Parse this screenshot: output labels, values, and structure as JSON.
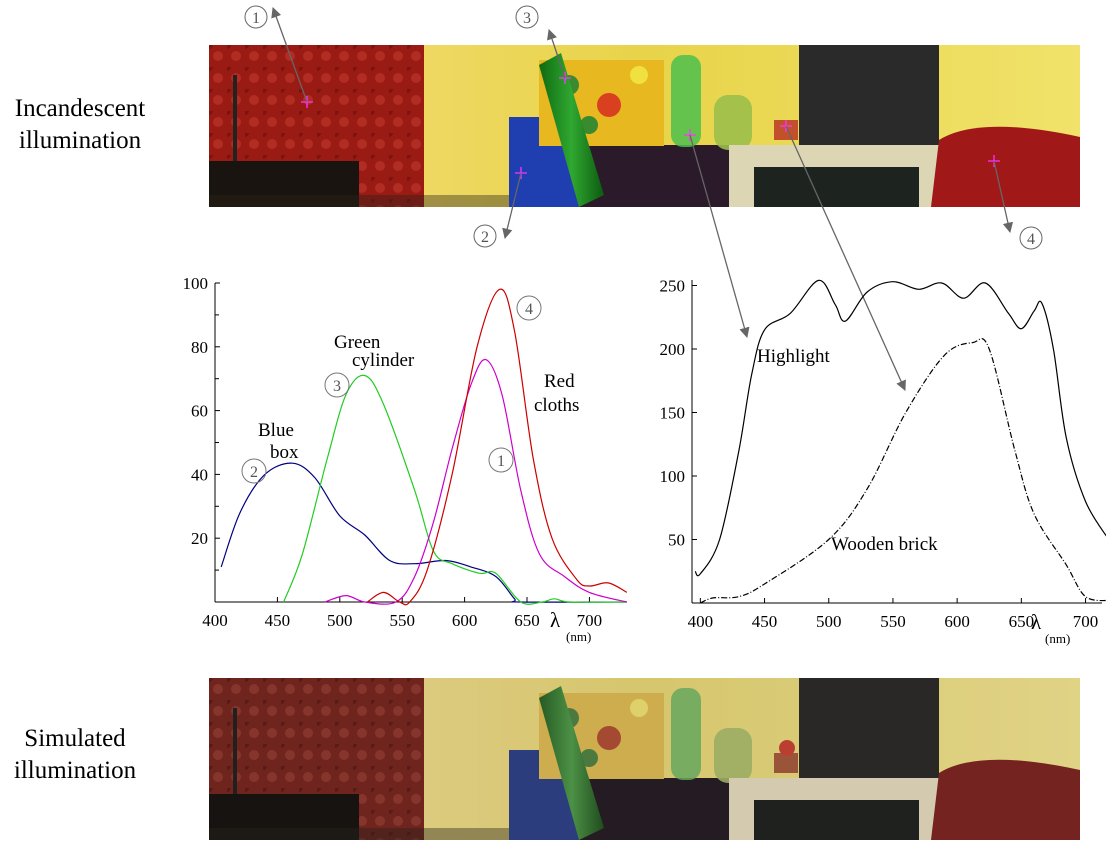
{
  "row_labels": {
    "top": [
      "Incandescent",
      "illumination"
    ],
    "bottom": [
      "Simulated",
      "illumination"
    ]
  },
  "markers": [
    "1",
    "2",
    "3",
    "4"
  ],
  "colors": {
    "marker": "#ff33ff",
    "blue_box": "#000080",
    "green_cylinder": "#22cc22",
    "red_cloths_1": "#cc00cc",
    "red_cloths_4": "#cc0000",
    "arrow": "#666666"
  },
  "chart_data": [
    {
      "type": "line",
      "xlabel": "λ",
      "xunit": "(nm)",
      "ylabel": "",
      "xlim": [
        388,
        732
      ],
      "ylim": [
        0,
        100
      ],
      "xticks": [
        400,
        450,
        500,
        550,
        600,
        650,
        700
      ],
      "yticks": [
        20,
        40,
        60,
        80,
        100
      ],
      "annotations": {
        "blue": [
          "Blue",
          "box"
        ],
        "green": [
          "Green",
          "cylinder"
        ],
        "red": [
          "Red",
          "cloths"
        ]
      },
      "series": [
        {
          "name": "2",
          "label": "Blue box",
          "color": "#000080",
          "points": [
            [
              405,
              11
            ],
            [
              420,
              28
            ],
            [
              440,
              40
            ],
            [
              462,
              43.5
            ],
            [
              480,
              39
            ],
            [
              500,
              27
            ],
            [
              520,
              21
            ],
            [
              540,
              13
            ],
            [
              560,
              12
            ],
            [
              585,
              13
            ],
            [
              605,
              11
            ],
            [
              625,
              8
            ],
            [
              640,
              1
            ],
            [
              645,
              0
            ],
            [
              730,
              0
            ]
          ]
        },
        {
          "name": "3",
          "label": "Green cylinder",
          "color": "#22cc22",
          "points": [
            [
              455,
              0
            ],
            [
              470,
              15
            ],
            [
              490,
              45
            ],
            [
              505,
              65
            ],
            [
              520,
              71
            ],
            [
              535,
              62
            ],
            [
              560,
              35
            ],
            [
              575,
              16
            ],
            [
              590,
              12
            ],
            [
              612,
              9
            ],
            [
              625,
              9
            ],
            [
              645,
              0
            ],
            [
              662,
              0
            ],
            [
              672,
              1
            ],
            [
              685,
              0
            ],
            [
              730,
              0
            ]
          ]
        },
        {
          "name": "1",
          "label": "Red cloths",
          "color": "#cc00cc",
          "points": [
            [
              488,
              0
            ],
            [
              505,
              2
            ],
            [
              520,
              0
            ],
            [
              545,
              0
            ],
            [
              560,
              8
            ],
            [
              575,
              25
            ],
            [
              590,
              48
            ],
            [
              605,
              68
            ],
            [
              617,
              76
            ],
            [
              630,
              65
            ],
            [
              645,
              35
            ],
            [
              660,
              15
            ],
            [
              680,
              8
            ],
            [
              700,
              3
            ],
            [
              730,
              0
            ]
          ]
        },
        {
          "name": "4",
          "label": "Red cloths",
          "color": "#cc0000",
          "points": [
            [
              522,
              0
            ],
            [
              535,
              3
            ],
            [
              548,
              0
            ],
            [
              556,
              0
            ],
            [
              570,
              10
            ],
            [
              590,
              40
            ],
            [
              610,
              80
            ],
            [
              628,
              98
            ],
            [
              640,
              85
            ],
            [
              655,
              45
            ],
            [
              670,
              20
            ],
            [
              690,
              7
            ],
            [
              700,
              5
            ],
            [
              715,
              6
            ],
            [
              730,
              3
            ]
          ]
        }
      ]
    },
    {
      "type": "line",
      "xlabel": "λ",
      "xunit": "(nm)",
      "ylabel": "",
      "xlim": [
        393,
        722
      ],
      "ylim": [
        0,
        262
      ],
      "xticks": [
        400,
        450,
        500,
        550,
        600,
        650,
        700
      ],
      "yticks": [
        50,
        100,
        150,
        200,
        250
      ],
      "series": [
        {
          "name": "Highlight",
          "style": "solid",
          "color": "#000000",
          "points": [
            [
              396,
              25
            ],
            [
              400,
              23
            ],
            [
              415,
              50
            ],
            [
              430,
              120
            ],
            [
              440,
              180
            ],
            [
              450,
              215
            ],
            [
              470,
              228
            ],
            [
              492,
              254
            ],
            [
              505,
              235
            ],
            [
              513,
              222
            ],
            [
              530,
              245
            ],
            [
              550,
              253
            ],
            [
              570,
              247
            ],
            [
              588,
              252
            ],
            [
              605,
              240
            ],
            [
              622,
              252
            ],
            [
              640,
              228
            ],
            [
              650,
              216
            ],
            [
              660,
              230
            ],
            [
              666,
              236
            ],
            [
              675,
              200
            ],
            [
              685,
              130
            ],
            [
              700,
              80
            ],
            [
              718,
              50
            ]
          ]
        },
        {
          "name": "Wooden brick",
          "style": "dashdot",
          "color": "#000000",
          "points": [
            [
              400,
              0
            ],
            [
              410,
              4
            ],
            [
              430,
              5
            ],
            [
              450,
              15
            ],
            [
              500,
              50
            ],
            [
              530,
              90
            ],
            [
              560,
              150
            ],
            [
              590,
              195
            ],
            [
              612,
              205
            ],
            [
              625,
              200
            ],
            [
              645,
              120
            ],
            [
              660,
              70
            ],
            [
              685,
              30
            ],
            [
              700,
              5
            ],
            [
              720,
              2
            ]
          ]
        }
      ]
    }
  ]
}
